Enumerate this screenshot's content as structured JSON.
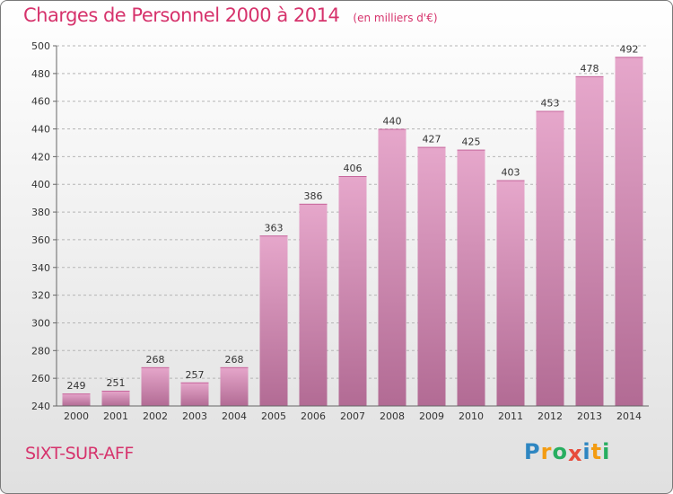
{
  "title": "Charges de Personnel 2000 à 2014",
  "subtitle": "(en milliers d'€)",
  "commune": "SIXT-SUR-AFF",
  "logo": {
    "letters": [
      "P",
      "r",
      "o",
      "x",
      "i",
      "t",
      "i"
    ],
    "colors": [
      "#2e86c1",
      "#f39c12",
      "#27ae60",
      "#e74c3c",
      "#2e86c1",
      "#f39c12",
      "#27ae60"
    ]
  },
  "chart_data": {
    "type": "bar",
    "title": "Charges de Personnel 2000 à 2014",
    "subtitle": "(en milliers d'€)",
    "categories": [
      "2000",
      "2001",
      "2002",
      "2003",
      "2004",
      "2005",
      "2006",
      "2007",
      "2008",
      "2009",
      "2010",
      "2011",
      "2012",
      "2013",
      "2014"
    ],
    "values": [
      249,
      251,
      268,
      257,
      268,
      363,
      386,
      406,
      440,
      427,
      425,
      403,
      453,
      478,
      492
    ],
    "ylim": [
      240,
      500
    ],
    "yticks": [
      240,
      260,
      280,
      300,
      320,
      340,
      360,
      380,
      400,
      420,
      440,
      460,
      480,
      500
    ],
    "grid": "horizontal dashed",
    "bar_color": "#dc8fba"
  }
}
